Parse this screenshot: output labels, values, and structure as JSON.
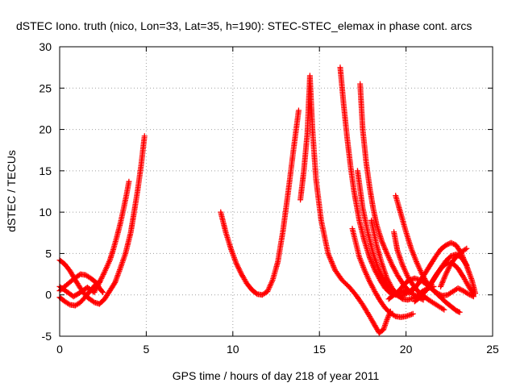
{
  "chart_data": {
    "type": "scatter",
    "title": "dSTEC Iono. truth (nico, Lon=33, Lat=35, h=190): STEC-STEC_elemax in phase cont. arcs",
    "xlabel": "GPS time / hours of day 218 of year 2011",
    "ylabel": "dSTEC  / TECUs",
    "xlim": [
      0,
      25
    ],
    "ylim": [
      -5,
      30
    ],
    "xticks": [
      0,
      5,
      10,
      15,
      20,
      25
    ],
    "yticks": [
      -5,
      0,
      5,
      10,
      15,
      20,
      25,
      30
    ],
    "grid": true,
    "marker": "+",
    "color": "#ff0000",
    "series": [
      {
        "x": [
          0.0,
          0.4,
          0.8,
          1.2,
          1.6,
          2.0,
          2.3,
          2.6,
          2.9,
          3.1,
          3.3,
          3.5,
          3.7,
          3.85,
          4.0
        ],
        "y": [
          1.0,
          0.4,
          -0.2,
          0.3,
          0.9,
          0.3,
          1.5,
          2.8,
          4.2,
          5.5,
          7.0,
          8.6,
          10.5,
          12.0,
          13.7
        ]
      },
      {
        "x": [
          0.0,
          0.3,
          0.6,
          0.9,
          1.2,
          1.6,
          2.0,
          2.3,
          2.6,
          2.9,
          3.2,
          3.5,
          3.8,
          4.1,
          4.3,
          4.5,
          4.7,
          4.9
        ],
        "y": [
          4.2,
          3.7,
          2.9,
          1.8,
          0.8,
          -0.3,
          -0.9,
          -1.1,
          -0.5,
          0.5,
          1.5,
          3.2,
          5.0,
          7.5,
          10.0,
          12.6,
          15.6,
          19.2
        ]
      },
      {
        "x": [
          0.0,
          0.3,
          0.6,
          0.9,
          1.2,
          1.5,
          1.8,
          2.1,
          2.3
        ],
        "y": [
          -0.3,
          -0.8,
          -1.2,
          -1.3,
          -0.9,
          -0.2,
          0.6,
          1.3,
          1.6
        ]
      },
      {
        "x": [
          0.0,
          0.4,
          0.8,
          1.2,
          1.5,
          1.8,
          2.1,
          2.3,
          2.5
        ],
        "y": [
          0.5,
          1.2,
          1.9,
          2.5,
          2.4,
          2.0,
          1.5,
          0.8,
          0.3
        ]
      },
      {
        "x": [
          9.3,
          9.6,
          9.9,
          10.2,
          10.5,
          10.8,
          11.1,
          11.4,
          11.7,
          12.0,
          12.3,
          12.6,
          12.9,
          13.2,
          13.5,
          13.8
        ],
        "y": [
          10.0,
          7.5,
          5.5,
          3.8,
          2.5,
          1.4,
          0.6,
          0.1,
          0.0,
          0.4,
          1.8,
          4.0,
          7.8,
          12.5,
          17.5,
          22.3
        ]
      },
      {
        "x": [
          13.9,
          14.1,
          14.3,
          14.45,
          14.6,
          14.8,
          15.1,
          15.5,
          15.9,
          16.3,
          16.7,
          17.1,
          17.5,
          17.9,
          18.2,
          18.45,
          18.7,
          18.9,
          19.1
        ],
        "y": [
          11.5,
          15.0,
          19.5,
          26.5,
          20.0,
          14.0,
          9.0,
          5.0,
          3.0,
          1.8,
          1.0,
          0.0,
          -1.2,
          -2.6,
          -3.7,
          -4.6,
          -4.2,
          -3.0,
          -2.0
        ]
      },
      {
        "x": [
          16.2,
          16.4,
          16.6,
          16.8,
          17.0,
          17.3,
          17.6,
          17.9,
          18.2,
          18.5,
          18.8,
          19.1,
          19.4,
          19.7,
          20.0
        ],
        "y": [
          27.5,
          23.0,
          19.0,
          15.5,
          12.5,
          9.0,
          6.5,
          4.5,
          3.0,
          1.8,
          0.8,
          0.2,
          0.0,
          0.3,
          0.6
        ]
      },
      {
        "x": [
          17.35,
          17.5,
          17.7,
          17.9,
          18.1,
          18.3,
          18.6,
          18.9,
          19.2,
          19.5,
          19.8,
          20.1,
          20.4,
          20.7,
          21.0
        ],
        "y": [
          25.5,
          20.0,
          16.0,
          13.0,
          10.5,
          8.5,
          6.5,
          5.0,
          3.6,
          2.4,
          1.4,
          0.6,
          0.1,
          -0.3,
          -0.6
        ]
      },
      {
        "x": [
          16.9,
          17.1,
          17.3,
          17.6,
          17.9,
          18.2,
          18.5,
          18.8,
          19.1,
          19.4,
          19.7,
          20.0,
          20.4
        ],
        "y": [
          8.0,
          6.3,
          4.6,
          3.0,
          1.6,
          0.4,
          -0.7,
          -1.6,
          -2.2,
          -2.6,
          -2.7,
          -2.6,
          -2.3
        ]
      },
      {
        "x": [
          17.2,
          17.5,
          17.8,
          18.1,
          18.4,
          18.7,
          19.0,
          19.3,
          19.6,
          19.9,
          20.2,
          20.5
        ],
        "y": [
          15.0,
          10.5,
          7.5,
          5.0,
          3.2,
          1.9,
          0.9,
          0.2,
          -0.2,
          0.0,
          0.4,
          0.9
        ]
      },
      {
        "x": [
          18.0,
          18.3,
          18.6,
          18.9,
          19.2,
          19.5,
          19.8,
          20.1,
          20.4,
          20.7,
          21.0,
          21.3,
          21.6
        ],
        "y": [
          9.0,
          6.0,
          3.8,
          2.0,
          0.8,
          0.0,
          -0.5,
          -0.6,
          -0.4,
          0.0,
          0.5,
          0.8,
          1.0
        ]
      },
      {
        "x": [
          19.4,
          19.7,
          20.0,
          20.3,
          20.6,
          20.9,
          21.2,
          21.5,
          21.8,
          22.1,
          22.4,
          22.7,
          23.0,
          23.3,
          23.6,
          23.9
        ],
        "y": [
          12.0,
          9.8,
          7.6,
          5.6,
          4.0,
          2.6,
          1.5,
          0.7,
          0.2,
          -0.1,
          0.0,
          0.4,
          0.8,
          0.5,
          0.1,
          -0.2
        ]
      },
      {
        "x": [
          19.3,
          19.5,
          19.8,
          20.1,
          20.4,
          20.7,
          21.0,
          21.3,
          21.6,
          21.9,
          22.2
        ],
        "y": [
          7.6,
          5.4,
          3.6,
          2.2,
          1.2,
          0.4,
          -0.1,
          -0.6,
          -1.0,
          -1.4,
          -1.8
        ]
      },
      {
        "x": [
          19.0,
          19.3,
          19.6,
          19.9,
          20.2,
          20.5,
          20.8,
          21.1,
          21.4,
          21.7,
          22.0,
          22.3,
          22.6,
          22.9,
          23.1
        ],
        "y": [
          -0.5,
          0.0,
          0.5,
          1.3,
          1.8,
          2.0,
          1.8,
          1.4,
          0.9,
          0.3,
          -0.3,
          -0.9,
          -1.4,
          -1.9,
          -2.1
        ]
      },
      {
        "x": [
          20.2,
          20.5,
          20.8,
          21.1,
          21.4,
          21.7,
          22.0,
          22.3,
          22.6,
          22.9,
          23.2,
          23.5,
          23.8,
          24.0
        ],
        "y": [
          0.2,
          0.8,
          1.6,
          2.6,
          3.6,
          4.6,
          5.5,
          6.0,
          6.3,
          6.0,
          5.0,
          3.5,
          1.8,
          0.2
        ]
      },
      {
        "x": [
          20.5,
          20.8,
          21.1,
          21.4,
          21.7,
          22.0,
          22.3,
          22.6,
          22.9,
          23.2,
          23.5
        ],
        "y": [
          -0.8,
          -0.3,
          0.4,
          1.2,
          2.2,
          3.2,
          4.1,
          4.7,
          4.9,
          4.5,
          3.6
        ]
      },
      {
        "x": [
          21.2,
          21.5,
          21.8,
          22.1,
          22.4,
          22.7,
          23.0,
          23.3,
          23.6,
          23.9
        ],
        "y": [
          0.6,
          1.6,
          2.6,
          3.4,
          3.9,
          3.8,
          3.2,
          2.2,
          1.1,
          0.0
        ]
      },
      {
        "x": [
          22.0,
          22.3,
          22.6,
          22.9,
          23.2,
          23.5
        ],
        "y": [
          1.0,
          2.5,
          3.8,
          4.6,
          5.2,
          5.6
        ]
      }
    ]
  }
}
